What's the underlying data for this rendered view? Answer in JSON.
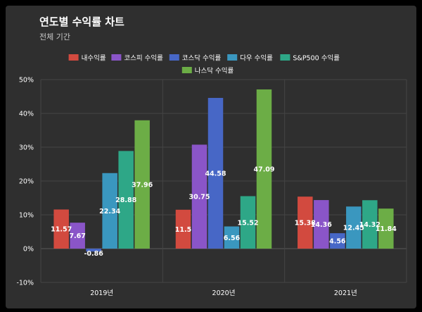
{
  "chart_data": {
    "type": "bar",
    "title": "연도별 수익률 차트",
    "subtitle": "전체 기간",
    "categories": [
      "2019년",
      "2020년",
      "2021년"
    ],
    "yticks": [
      "50%",
      "40%",
      "30%",
      "20%",
      "10%",
      "0%",
      "-10%"
    ],
    "ylim": [
      -10,
      50
    ],
    "grid": true,
    "legend_position": "top",
    "series": [
      {
        "name": "내수익률",
        "color": "#d24a3f",
        "values": [
          11.57,
          11.5,
          15.38
        ]
      },
      {
        "name": "코스피 수익률",
        "color": "#8a55c8",
        "values": [
          7.67,
          30.75,
          14.36
        ]
      },
      {
        "name": "코스닥 수익률",
        "color": "#4767c6",
        "values": [
          -0.86,
          44.58,
          4.56
        ]
      },
      {
        "name": "다우 수익률",
        "color": "#3a97bf",
        "values": [
          22.34,
          6.56,
          12.45
        ]
      },
      {
        "name": "S&P500 수익률",
        "color": "#2ea787",
        "values": [
          28.88,
          15.52,
          14.32
        ]
      },
      {
        "name": "나스닥 수익률",
        "color": "#6cad46",
        "values": [
          37.96,
          47.09,
          11.84
        ]
      }
    ]
  }
}
